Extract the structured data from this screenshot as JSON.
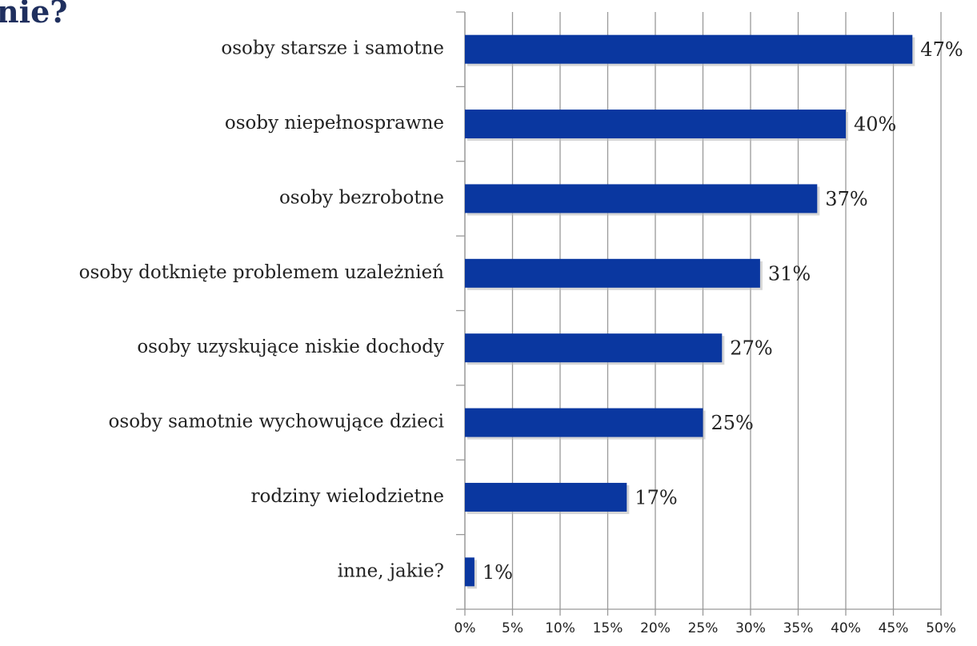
{
  "chart_data": {
    "type": "bar",
    "orientation": "horizontal",
    "title": "nie?",
    "categories": [
      "osoby starsze i samotne",
      "osoby niepełnosprawne",
      "osoby bezrobotne",
      "osoby dotknięte problemem uzależnień",
      "osoby uzyskujące niskie dochody",
      "osoby samotnie wychowujące dzieci",
      "rodziny wielodzietne",
      "inne, jakie?"
    ],
    "values": [
      47,
      40,
      37,
      31,
      27,
      25,
      17,
      1
    ],
    "value_labels": [
      "47%",
      "40%",
      "37%",
      "31%",
      "27%",
      "25%",
      "17%",
      "1%"
    ],
    "color": "#0a37a0",
    "xlim": [
      0,
      50
    ],
    "xticks": [
      {
        "value": 0,
        "label": "0%"
      },
      {
        "value": 5,
        "label": "5%"
      },
      {
        "value": 10,
        "label": "10%"
      },
      {
        "value": 15,
        "label": "15%"
      },
      {
        "value": 20,
        "label": "20%"
      },
      {
        "value": 25,
        "label": "25%"
      },
      {
        "value": 30,
        "label": "30%"
      },
      {
        "value": 35,
        "label": "35%"
      },
      {
        "value": 40,
        "label": "40%"
      },
      {
        "value": 45,
        "label": "45%"
      },
      {
        "value": 50,
        "label": "50%"
      }
    ],
    "grid": true
  }
}
